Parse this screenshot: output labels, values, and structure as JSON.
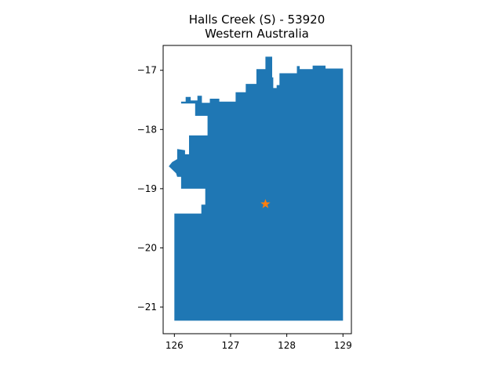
{
  "title": {
    "line1": "Halls Creek (S) - 53920",
    "line2": "Western Australia"
  },
  "colors": {
    "region_fill": "#1f77b4",
    "marker": "#ff7f0e"
  },
  "chart_data": {
    "type": "map",
    "title": "Halls Creek (S) - 53920\nWestern Australia",
    "xlim": [
      125.8,
      129.15
    ],
    "ylim": [
      -21.45,
      -16.58
    ],
    "xticks": [
      126,
      127,
      128,
      129
    ],
    "yticks": [
      -17,
      -18,
      -19,
      -20,
      -21
    ],
    "xtick_labels": [
      "126",
      "127",
      "128",
      "129"
    ],
    "ytick_labels": [
      "−17",
      "−18",
      "−19",
      "−20",
      "−21"
    ],
    "grid": false,
    "region_outline_lonlat": [
      [
        126.0,
        -21.23
      ],
      [
        129.0,
        -21.23
      ],
      [
        129.0,
        -16.97
      ],
      [
        128.69,
        -16.97
      ],
      [
        128.69,
        -16.92
      ],
      [
        128.46,
        -16.92
      ],
      [
        128.46,
        -16.98
      ],
      [
        128.23,
        -16.98
      ],
      [
        128.23,
        -16.93
      ],
      [
        128.18,
        -16.93
      ],
      [
        128.18,
        -17.05
      ],
      [
        127.87,
        -17.05
      ],
      [
        127.87,
        -17.25
      ],
      [
        127.82,
        -17.25
      ],
      [
        127.82,
        -17.3
      ],
      [
        127.76,
        -17.3
      ],
      [
        127.76,
        -17.12
      ],
      [
        127.74,
        -17.12
      ],
      [
        127.74,
        -16.77
      ],
      [
        127.62,
        -16.77
      ],
      [
        127.62,
        -16.98
      ],
      [
        127.46,
        -16.98
      ],
      [
        127.46,
        -17.23
      ],
      [
        127.27,
        -17.23
      ],
      [
        127.27,
        -17.37
      ],
      [
        127.09,
        -17.37
      ],
      [
        127.09,
        -17.53
      ],
      [
        126.8,
        -17.53
      ],
      [
        126.8,
        -17.48
      ],
      [
        126.63,
        -17.48
      ],
      [
        126.63,
        -17.55
      ],
      [
        126.49,
        -17.55
      ],
      [
        126.49,
        -17.43
      ],
      [
        126.41,
        -17.43
      ],
      [
        126.41,
        -17.51
      ],
      [
        126.29,
        -17.51
      ],
      [
        126.29,
        -17.45
      ],
      [
        126.2,
        -17.45
      ],
      [
        126.2,
        -17.53
      ],
      [
        126.12,
        -17.53
      ],
      [
        126.12,
        -17.56
      ],
      [
        126.37,
        -17.56
      ],
      [
        126.37,
        -17.77
      ],
      [
        126.59,
        -17.77
      ],
      [
        126.59,
        -18.1
      ],
      [
        126.26,
        -18.1
      ],
      [
        126.26,
        -18.42
      ],
      [
        126.19,
        -18.42
      ],
      [
        126.19,
        -18.35
      ],
      [
        126.05,
        -18.33
      ],
      [
        126.05,
        -18.5
      ],
      [
        125.96,
        -18.55
      ],
      [
        125.9,
        -18.62
      ],
      [
        126.03,
        -18.74
      ],
      [
        126.05,
        -18.8
      ],
      [
        126.12,
        -18.8
      ],
      [
        126.12,
        -19.0
      ],
      [
        126.55,
        -19.0
      ],
      [
        126.55,
        -19.27
      ],
      [
        126.48,
        -19.27
      ],
      [
        126.48,
        -19.42
      ],
      [
        126.0,
        -19.42
      ]
    ],
    "marker": {
      "shape": "star",
      "lon": 127.62,
      "lat": -19.26
    }
  }
}
